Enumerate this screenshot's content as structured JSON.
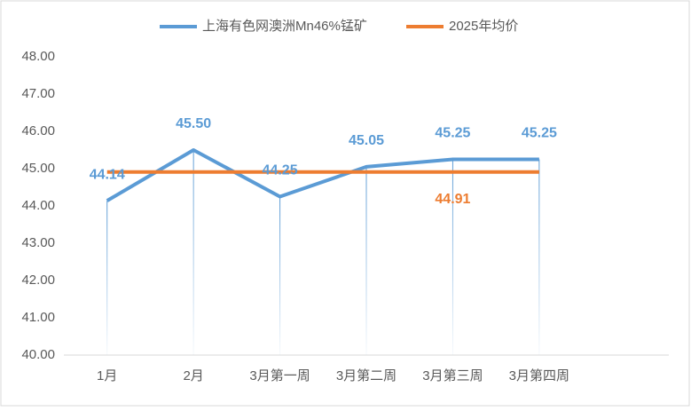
{
  "chart_data": {
    "type": "line",
    "categories": [
      "1月",
      "2月",
      "3月第一周",
      "3月第二周",
      "3月第三周",
      "3月第四周",
      null
    ],
    "series": [
      {
        "name": "上海有色网澳洲Mn46%锰矿",
        "color": "#5b9bd5",
        "values": [
          44.14,
          45.5,
          44.25,
          45.05,
          45.25,
          45.25,
          null
        ],
        "value_labels": [
          "44.14",
          "45.50",
          "44.25",
          "45.05",
          "45.25",
          "45.25",
          null
        ]
      },
      {
        "name": "2025年均价",
        "color": "#ed7d31",
        "values": [
          44.91,
          44.91,
          44.91,
          44.91,
          44.91,
          44.91,
          null
        ],
        "value_labels": [
          null,
          null,
          null,
          null,
          "44.91",
          null,
          null
        ]
      }
    ],
    "ylim": [
      40,
      48
    ],
    "yticks": [
      {
        "value": 40,
        "label": "40.00"
      },
      {
        "value": 41,
        "label": "41.00"
      },
      {
        "value": 42,
        "label": "42.00"
      },
      {
        "value": 43,
        "label": "43.00"
      },
      {
        "value": 44,
        "label": "44.00"
      },
      {
        "value": 45,
        "label": "45.00"
      },
      {
        "value": 46,
        "label": "46.00"
      },
      {
        "value": 47,
        "label": "47.00"
      },
      {
        "value": 48,
        "label": "48.00"
      }
    ],
    "drop_lines": true,
    "legend": "top"
  }
}
